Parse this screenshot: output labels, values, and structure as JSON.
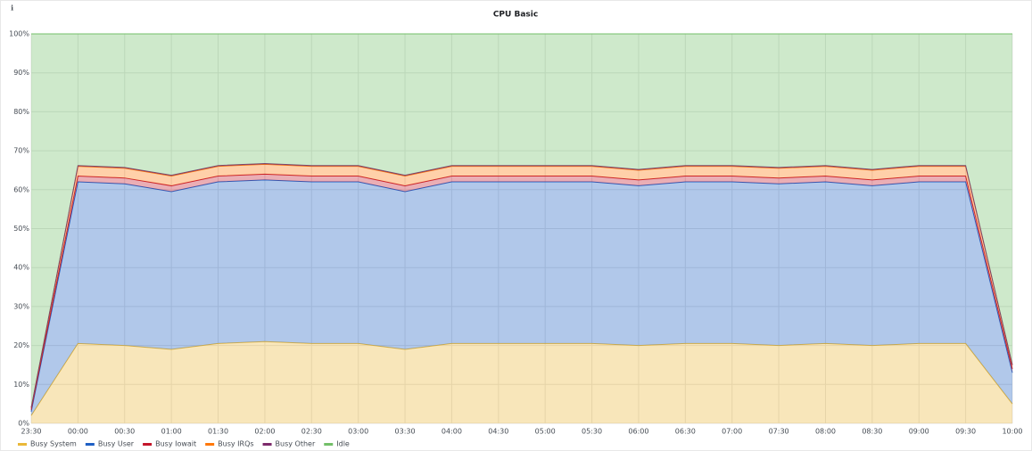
{
  "chart_data": {
    "type": "area",
    "stacked": true,
    "title": "CPU Basic",
    "x": [
      "23:30",
      "00:00",
      "00:30",
      "01:00",
      "01:30",
      "02:00",
      "02:30",
      "03:00",
      "03:30",
      "04:00",
      "04:30",
      "05:00",
      "05:30",
      "06:00",
      "06:30",
      "07:00",
      "07:30",
      "08:00",
      "08:30",
      "09:00",
      "09:30",
      "10:00"
    ],
    "series": [
      {
        "name": "Busy System",
        "color": "#eab839",
        "values": [
          2,
          20.5,
          20,
          19,
          20.5,
          21,
          20.5,
          20.5,
          19,
          20.5,
          20.5,
          20.5,
          20.5,
          20,
          20.5,
          20.5,
          20,
          20.5,
          20,
          20.5,
          20.5,
          5
        ]
      },
      {
        "name": "Busy User",
        "color": "#1f60c4",
        "values": [
          1,
          41.5,
          41.5,
          40.5,
          41.5,
          41.5,
          41.5,
          41.5,
          40.5,
          41.5,
          41.5,
          41.5,
          41.5,
          41,
          41.5,
          41.5,
          41.5,
          41.5,
          41,
          41.5,
          41.5,
          8
        ]
      },
      {
        "name": "Busy Iowait",
        "color": "#c4162a",
        "values": [
          0.5,
          1.5,
          1.5,
          1.5,
          1.5,
          1.5,
          1.5,
          1.5,
          1.5,
          1.5,
          1.5,
          1.5,
          1.5,
          1.5,
          1.5,
          1.5,
          1.5,
          1.5,
          1.5,
          1.5,
          1.5,
          1
        ]
      },
      {
        "name": "Busy IRQs",
        "color": "#ff780a",
        "values": [
          0.5,
          2.5,
          2.5,
          2.5,
          2.5,
          2.5,
          2.5,
          2.5,
          2.5,
          2.5,
          2.5,
          2.5,
          2.5,
          2.5,
          2.5,
          2.5,
          2.5,
          2.5,
          2.5,
          2.5,
          2.5,
          1
        ]
      },
      {
        "name": "Busy Other",
        "color": "#7d2a6b",
        "values": [
          0,
          0.2,
          0.2,
          0.2,
          0.2,
          0.2,
          0.2,
          0.2,
          0.2,
          0.2,
          0.2,
          0.2,
          0.2,
          0.2,
          0.2,
          0.2,
          0.2,
          0.2,
          0.2,
          0.2,
          0.2,
          0
        ]
      },
      {
        "name": "Idle",
        "color": "#73bf69",
        "values": [
          96,
          33.8,
          34.3,
          36.3,
          33.8,
          33.3,
          33.8,
          33.8,
          36.3,
          33.8,
          33.8,
          33.8,
          33.8,
          34.8,
          33.8,
          33.8,
          34.3,
          33.8,
          34.8,
          33.8,
          33.8,
          85
        ]
      }
    ],
    "ylim": [
      0,
      100
    ],
    "yticks": [
      {
        "value": 0,
        "label": "0%"
      },
      {
        "value": 10,
        "label": "10%"
      },
      {
        "value": 20,
        "label": "20%"
      },
      {
        "value": 30,
        "label": "30%"
      },
      {
        "value": 40,
        "label": "40%"
      },
      {
        "value": 50,
        "label": "50%"
      },
      {
        "value": 60,
        "label": "60%"
      },
      {
        "value": 70,
        "label": "70%"
      },
      {
        "value": 80,
        "label": "80%"
      },
      {
        "value": 90,
        "label": "90%"
      },
      {
        "value": 100,
        "label": "100%"
      }
    ],
    "grid": true,
    "legend": "bottom"
  }
}
